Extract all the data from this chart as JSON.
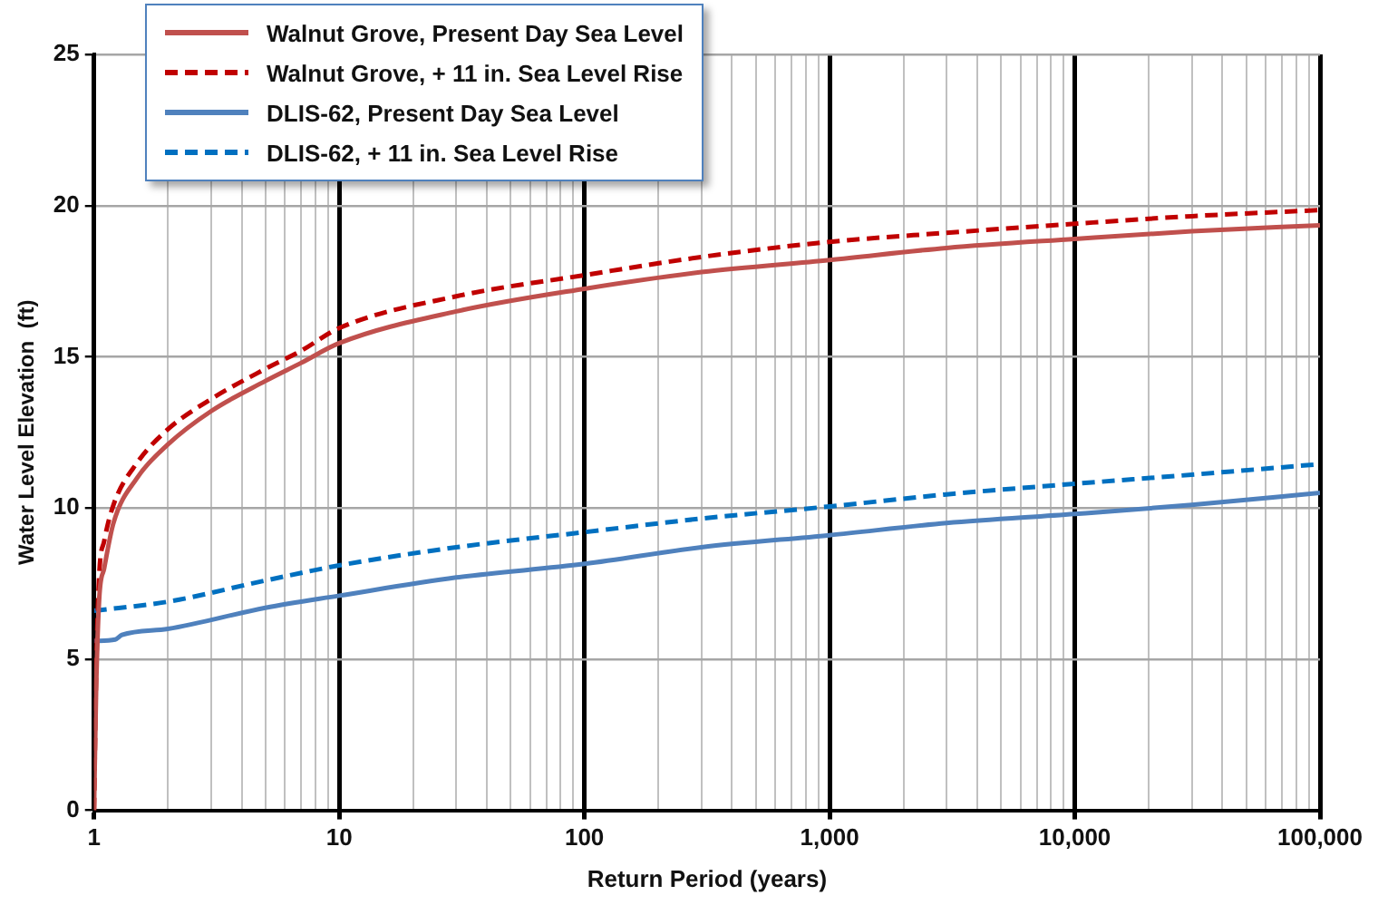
{
  "chart_data": {
    "type": "line",
    "xlabel": "Return Period (years)",
    "ylabel": "Water Level Elevation  (ft)",
    "log": "x",
    "xlim": [
      1,
      100000
    ],
    "xticks": [
      {
        "value": 1,
        "label": "1"
      },
      {
        "value": 2,
        "label": null
      },
      {
        "value": 3,
        "label": null
      },
      {
        "value": 4,
        "label": null
      },
      {
        "value": 5,
        "label": null
      },
      {
        "value": 6,
        "label": null
      },
      {
        "value": 7,
        "label": null
      },
      {
        "value": 8,
        "label": null
      },
      {
        "value": 9,
        "label": null
      },
      {
        "value": 10,
        "label": "10"
      },
      {
        "value": 20,
        "label": null
      },
      {
        "value": 30,
        "label": null
      },
      {
        "value": 40,
        "label": null
      },
      {
        "value": 50,
        "label": null
      },
      {
        "value": 60,
        "label": null
      },
      {
        "value": 70,
        "label": null
      },
      {
        "value": 80,
        "label": null
      },
      {
        "value": 90,
        "label": null
      },
      {
        "value": 100,
        "label": "100"
      },
      {
        "value": 200,
        "label": null
      },
      {
        "value": 300,
        "label": null
      },
      {
        "value": 400,
        "label": null
      },
      {
        "value": 500,
        "label": null
      },
      {
        "value": 600,
        "label": null
      },
      {
        "value": 700,
        "label": null
      },
      {
        "value": 800,
        "label": null
      },
      {
        "value": 900,
        "label": null
      },
      {
        "value": 1000,
        "label": "1,000"
      },
      {
        "value": 2000,
        "label": null
      },
      {
        "value": 3000,
        "label": null
      },
      {
        "value": 4000,
        "label": null
      },
      {
        "value": 5000,
        "label": null
      },
      {
        "value": 6000,
        "label": null
      },
      {
        "value": 7000,
        "label": null
      },
      {
        "value": 8000,
        "label": null
      },
      {
        "value": 9000,
        "label": null
      },
      {
        "value": 10000,
        "label": "10,000"
      },
      {
        "value": 20000,
        "label": null
      },
      {
        "value": 30000,
        "label": null
      },
      {
        "value": 40000,
        "label": null
      },
      {
        "value": 50000,
        "label": null
      },
      {
        "value": 60000,
        "label": null
      },
      {
        "value": 70000,
        "label": null
      },
      {
        "value": 80000,
        "label": null
      },
      {
        "value": 90000,
        "label": null
      },
      {
        "value": 100000,
        "label": "100,000"
      }
    ],
    "ylim": [
      0,
      25
    ],
    "yticks": [
      0,
      5,
      10,
      15,
      20,
      25
    ],
    "grid": true,
    "legend": "top left",
    "marker": "none",
    "series": [
      {
        "name": "Walnut Grove, Present Day Sea Level",
        "color": "#c0504d",
        "line_style": "solid",
        "x": [
          1,
          1.02,
          1.05,
          1.1,
          1.2,
          1.5,
          2,
          3,
          5,
          7,
          10,
          30,
          100,
          300,
          1000,
          3000,
          10000,
          30000,
          100000
        ],
        "values": [
          0,
          4,
          7,
          8,
          9.5,
          11,
          12.1,
          13.2,
          14.2,
          14.8,
          15.45,
          16.5,
          17.25,
          17.8,
          18.2,
          18.6,
          18.9,
          19.15,
          19.35
        ]
      },
      {
        "name": "Walnut Grove, + 11 in. Sea Level Rise",
        "color": "#c00000",
        "line_style": "dashed",
        "x": [
          1,
          1.02,
          1.05,
          1.1,
          1.2,
          1.5,
          2,
          3,
          5,
          7,
          10,
          30,
          100,
          300,
          1000,
          3000,
          10000,
          30000,
          100000
        ],
        "values": [
          0,
          4.5,
          7.8,
          8.9,
          10.1,
          11.5,
          12.6,
          13.6,
          14.6,
          15.2,
          15.95,
          17,
          17.7,
          18.3,
          18.8,
          19.1,
          19.4,
          19.65,
          19.85
        ]
      },
      {
        "name": "DLIS-62, Present Day Sea Level",
        "color": "#4f81bd",
        "line_style": "solid",
        "x": [
          1,
          1.22,
          1.3,
          2,
          5,
          10,
          30,
          100,
          300,
          1000,
          3000,
          10000,
          30000,
          100000
        ],
        "values": [
          5.6,
          5.65,
          5.8,
          6,
          6.7,
          7.1,
          7.7,
          8.15,
          8.7,
          9.1,
          9.5,
          9.8,
          10.1,
          10.5
        ]
      },
      {
        "name": "DLIS-62, + 11 in. Sea Level Rise",
        "color": "#0070c0",
        "line_style": "dashed",
        "x": [
          1,
          2,
          5,
          10,
          30,
          100,
          300,
          1000,
          3000,
          10000,
          30000,
          100000
        ],
        "values": [
          6.6,
          6.9,
          7.6,
          8.1,
          8.7,
          9.2,
          9.65,
          10.05,
          10.45,
          10.8,
          11.1,
          11.45
        ]
      }
    ]
  }
}
